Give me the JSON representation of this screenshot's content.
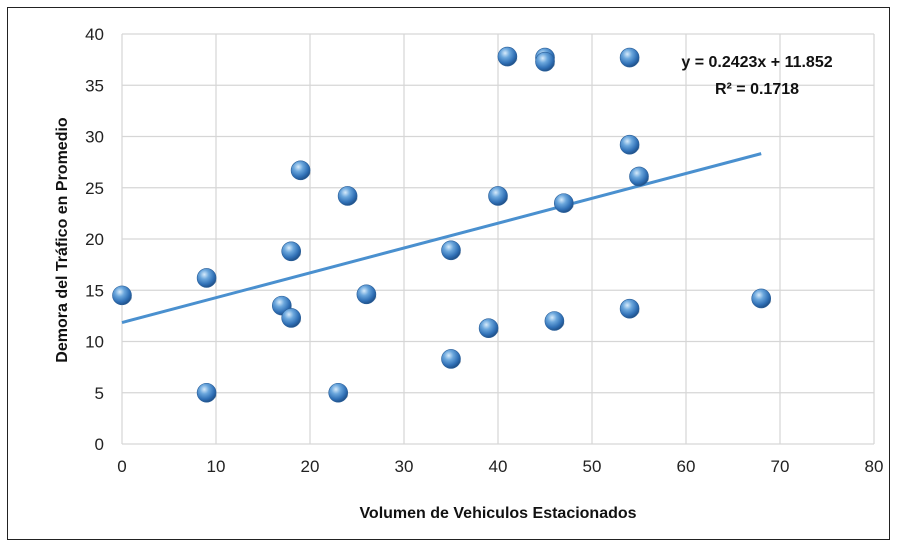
{
  "chart_data": {
    "type": "scatter",
    "title": "",
    "xlabel": "Volumen de Vehiculos Estacionados",
    "ylabel": "Demora del  Tráfico en Promedio",
    "xlim": [
      0,
      80
    ],
    "ylim": [
      0,
      40
    ],
    "x_ticks": [
      0,
      10,
      20,
      30,
      40,
      50,
      60,
      70,
      80
    ],
    "y_ticks": [
      0,
      5,
      10,
      15,
      20,
      25,
      30,
      35,
      40
    ],
    "grid": true,
    "legend": "none",
    "series": [
      {
        "points": [
          {
            "x": 0,
            "y": 14.5
          },
          {
            "x": 9,
            "y": 16.2
          },
          {
            "x": 9,
            "y": 5
          },
          {
            "x": 17,
            "y": 13.5
          },
          {
            "x": 18,
            "y": 12.3
          },
          {
            "x": 18,
            "y": 18.8
          },
          {
            "x": 19,
            "y": 26.7
          },
          {
            "x": 23,
            "y": 5
          },
          {
            "x": 24,
            "y": 24.2
          },
          {
            "x": 26,
            "y": 14.6
          },
          {
            "x": 35,
            "y": 8.3
          },
          {
            "x": 35,
            "y": 18.9
          },
          {
            "x": 39,
            "y": 11.3
          },
          {
            "x": 40,
            "y": 24.2
          },
          {
            "x": 41,
            "y": 37.8
          },
          {
            "x": 45,
            "y": 37.7
          },
          {
            "x": 45,
            "y": 37.3
          },
          {
            "x": 46,
            "y": 12
          },
          {
            "x": 47,
            "y": 23.5
          },
          {
            "x": 54,
            "y": 37.7
          },
          {
            "x": 54,
            "y": 29.2
          },
          {
            "x": 54,
            "y": 13.2
          },
          {
            "x": 55,
            "y": 26.1
          },
          {
            "x": 68,
            "y": 14.2
          }
        ],
        "marker_color": "#3f7fc4"
      }
    ],
    "trendline": {
      "type": "linear",
      "slope": 0.2423,
      "intercept": 11.852,
      "x_range": [
        0,
        68
      ],
      "color": "#4a90cf"
    },
    "annotations": {
      "equation": "y = 0.2423x + 11.852",
      "r_squared": "R² = 0.1718"
    }
  }
}
